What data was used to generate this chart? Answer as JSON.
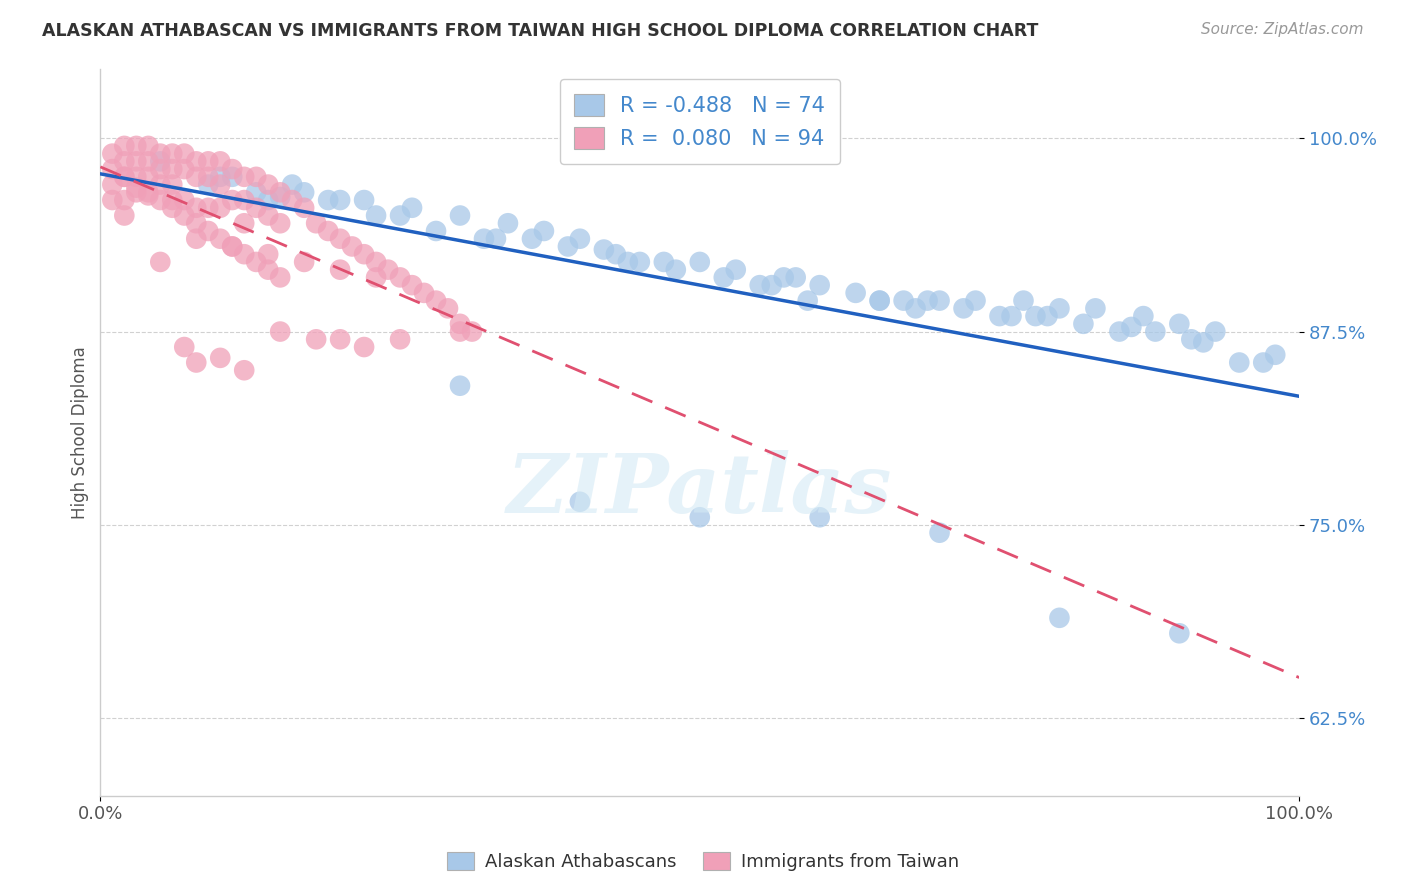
{
  "title": "ALASKAN ATHABASCAN VS IMMIGRANTS FROM TAIWAN HIGH SCHOOL DIPLOMA CORRELATION CHART",
  "source": "Source: ZipAtlas.com",
  "ylabel": "High School Diploma",
  "xlabel": "",
  "legend_label1": "Alaskan Athabascans",
  "legend_label2": "Immigrants from Taiwan",
  "R1": -0.488,
  "N1": 74,
  "R2": 0.08,
  "N2": 94,
  "color1": "#a8c8e8",
  "color2": "#f0a0b8",
  "line_color1": "#2060c0",
  "line_color2": "#e05070",
  "xlim": [
    0.0,
    1.0
  ],
  "ylim": [
    0.575,
    1.045
  ],
  "xticks": [
    0.0,
    1.0
  ],
  "xticklabels": [
    "0.0%",
    "100.0%"
  ],
  "ytick_positions": [
    0.625,
    0.75,
    0.875,
    1.0
  ],
  "ytick_labels": [
    "62.5%",
    "75.0%",
    "87.5%",
    "100.0%"
  ],
  "blue_x": [
    0.05,
    0.09,
    0.11,
    0.13,
    0.14,
    0.16,
    0.17,
    0.19,
    0.22,
    0.26,
    0.3,
    0.34,
    0.37,
    0.4,
    0.43,
    0.47,
    0.5,
    0.53,
    0.57,
    0.6,
    0.63,
    0.67,
    0.7,
    0.73,
    0.77,
    0.8,
    0.83,
    0.87,
    0.9,
    0.93,
    0.97,
    0.2,
    0.25,
    0.28,
    0.32,
    0.36,
    0.39,
    0.44,
    0.48,
    0.52,
    0.56,
    0.59,
    0.65,
    0.68,
    0.72,
    0.75,
    0.78,
    0.85,
    0.88,
    0.91,
    0.95,
    0.1,
    0.15,
    0.23,
    0.33,
    0.45,
    0.55,
    0.65,
    0.76,
    0.82,
    0.92,
    0.98,
    0.42,
    0.58,
    0.69,
    0.79,
    0.86,
    0.6,
    0.7,
    0.8,
    0.9,
    0.5,
    0.4,
    0.3
  ],
  "blue_y": [
    0.985,
    0.97,
    0.975,
    0.965,
    0.96,
    0.97,
    0.965,
    0.96,
    0.96,
    0.955,
    0.95,
    0.945,
    0.94,
    0.935,
    0.925,
    0.92,
    0.92,
    0.915,
    0.91,
    0.905,
    0.9,
    0.895,
    0.895,
    0.895,
    0.895,
    0.89,
    0.89,
    0.885,
    0.88,
    0.875,
    0.855,
    0.96,
    0.95,
    0.94,
    0.935,
    0.935,
    0.93,
    0.92,
    0.915,
    0.91,
    0.905,
    0.895,
    0.895,
    0.89,
    0.89,
    0.885,
    0.885,
    0.875,
    0.875,
    0.87,
    0.855,
    0.975,
    0.962,
    0.95,
    0.935,
    0.92,
    0.905,
    0.895,
    0.885,
    0.88,
    0.868,
    0.86,
    0.928,
    0.91,
    0.895,
    0.885,
    0.878,
    0.755,
    0.745,
    0.69,
    0.68,
    0.755,
    0.765,
    0.84
  ],
  "pink_x": [
    0.01,
    0.01,
    0.01,
    0.01,
    0.02,
    0.02,
    0.02,
    0.02,
    0.02,
    0.03,
    0.03,
    0.03,
    0.03,
    0.04,
    0.04,
    0.04,
    0.04,
    0.05,
    0.05,
    0.05,
    0.06,
    0.06,
    0.06,
    0.06,
    0.07,
    0.07,
    0.07,
    0.08,
    0.08,
    0.08,
    0.09,
    0.09,
    0.09,
    0.1,
    0.1,
    0.1,
    0.11,
    0.11,
    0.12,
    0.12,
    0.12,
    0.13,
    0.13,
    0.14,
    0.14,
    0.15,
    0.15,
    0.16,
    0.17,
    0.18,
    0.19,
    0.2,
    0.21,
    0.22,
    0.23,
    0.24,
    0.25,
    0.26,
    0.27,
    0.28,
    0.29,
    0.3,
    0.31,
    0.02,
    0.03,
    0.04,
    0.05,
    0.06,
    0.07,
    0.08,
    0.09,
    0.1,
    0.11,
    0.12,
    0.13,
    0.14,
    0.15,
    0.05,
    0.08,
    0.11,
    0.14,
    0.17,
    0.2,
    0.23,
    0.08,
    0.1,
    0.12,
    0.25,
    0.2,
    0.3,
    0.22,
    0.18,
    0.15,
    0.07
  ],
  "pink_y": [
    0.99,
    0.98,
    0.97,
    0.96,
    0.995,
    0.985,
    0.975,
    0.96,
    0.95,
    0.995,
    0.985,
    0.975,
    0.965,
    0.995,
    0.985,
    0.975,
    0.965,
    0.99,
    0.98,
    0.97,
    0.99,
    0.98,
    0.97,
    0.96,
    0.99,
    0.98,
    0.96,
    0.985,
    0.975,
    0.955,
    0.985,
    0.975,
    0.955,
    0.985,
    0.97,
    0.955,
    0.98,
    0.96,
    0.975,
    0.96,
    0.945,
    0.975,
    0.955,
    0.97,
    0.95,
    0.965,
    0.945,
    0.96,
    0.955,
    0.945,
    0.94,
    0.935,
    0.93,
    0.925,
    0.92,
    0.915,
    0.91,
    0.905,
    0.9,
    0.895,
    0.89,
    0.88,
    0.875,
    0.975,
    0.968,
    0.963,
    0.96,
    0.955,
    0.95,
    0.945,
    0.94,
    0.935,
    0.93,
    0.925,
    0.92,
    0.915,
    0.91,
    0.92,
    0.935,
    0.93,
    0.925,
    0.92,
    0.915,
    0.91,
    0.855,
    0.858,
    0.85,
    0.87,
    0.87,
    0.875,
    0.865,
    0.87,
    0.875,
    0.865
  ]
}
